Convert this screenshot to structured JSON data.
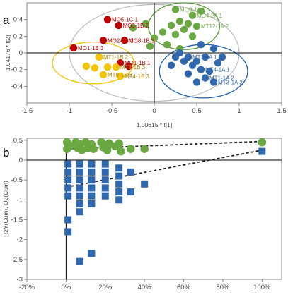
{
  "chart_data": [
    {
      "panel": "a",
      "type": "scatter",
      "xlabel": "1.00615 * t[1]",
      "ylabel": "1.04176 * t[2]",
      "xlim": [
        -1.5,
        1.5
      ],
      "ylim": [
        -0.6,
        0.6
      ],
      "xticks": [
        "-1.5",
        "-1",
        "-0.5",
        "0",
        "0.5",
        "1",
        "1.5"
      ],
      "yticks": [
        "0.4",
        "0.2",
        "0",
        "-0.2",
        "-0.4"
      ],
      "grid": false,
      "colors": {
        "MO": "#c00000",
        "MT": "#f5c400",
        "green": "#6aa842",
        "blue": "#3068b0"
      },
      "series": [
        {
          "color": "#c00000",
          "ellipse": null,
          "points": [
            {
              "x": -0.95,
              "y": 0.06,
              "label": "MO1-1B 3"
            },
            {
              "x": -0.55,
              "y": 0.4,
              "label": "MO5-1C 1"
            },
            {
              "x": -0.6,
              "y": 0.15,
              "label": "MO2-1B 3"
            },
            {
              "x": -0.42,
              "y": 0.33,
              "label": "MO3-1B 2"
            },
            {
              "x": -0.35,
              "y": 0.15,
              "label": "MO8-1B 3"
            },
            {
              "x": -0.4,
              "y": -0.12,
              "label": "MO1-1B 1"
            },
            {
              "x": -0.3,
              "y": -0.16,
              "label": ""
            }
          ]
        },
        {
          "color": "#f5c400",
          "ellipse": {
            "cx": -0.72,
            "cy": -0.12,
            "rx": 0.48,
            "ry": 0.25,
            "color": "#f5c400"
          },
          "points": [
            {
              "x": -0.65,
              "y": -0.05,
              "label": "MT1-1B 2"
            },
            {
              "x": -0.8,
              "y": -0.16,
              "label": ""
            },
            {
              "x": -0.7,
              "y": -0.18,
              "label": ""
            },
            {
              "x": -0.55,
              "y": -0.17,
              "label": ""
            },
            {
              "x": -0.45,
              "y": -0.17,
              "label": "MT8-1B 3"
            },
            {
              "x": -0.6,
              "y": -0.26,
              "label": "MT8-1B 3"
            },
            {
              "x": -0.4,
              "y": -0.28,
              "label": "MT4-1B 3"
            }
          ]
        },
        {
          "color": "#6aa842",
          "ellipse": {
            "cx": 0.35,
            "cy": 0.32,
            "rx": 0.42,
            "ry": 0.28,
            "color": "#5a9a3a"
          },
          "points": [
            {
              "x": 0.25,
              "y": 0.52,
              "label": "MO9-1A 1"
            },
            {
              "x": 0.45,
              "y": 0.45,
              "label": "MO4-2A 1"
            },
            {
              "x": 0.3,
              "y": 0.38,
              "label": ""
            },
            {
              "x": 0.2,
              "y": 0.33,
              "label": ""
            },
            {
              "x": 0.4,
              "y": 0.35,
              "label": ""
            },
            {
              "x": 0.5,
              "y": 0.32,
              "label": "MT12-1A 2"
            },
            {
              "x": 0.35,
              "y": 0.28,
              "label": ""
            },
            {
              "x": 0.25,
              "y": 0.22,
              "label": ""
            },
            {
              "x": 0.45,
              "y": 0.2,
              "label": ""
            },
            {
              "x": 0.1,
              "y": 0.25,
              "label": ""
            },
            {
              "x": 0.0,
              "y": 0.18,
              "label": ""
            },
            {
              "x": -0.25,
              "y": 0.3,
              "label": ""
            },
            {
              "x": -0.1,
              "y": 0.35,
              "label": ""
            },
            {
              "x": 0.15,
              "y": 0.1,
              "label": ""
            },
            {
              "x": -0.05,
              "y": 0.08,
              "label": ""
            },
            {
              "x": 0.55,
              "y": 0.5,
              "label": ""
            },
            {
              "x": 0.3,
              "y": 0.05,
              "label": ""
            }
          ]
        },
        {
          "color": "#3068b0",
          "ellipse": {
            "cx": 0.58,
            "cy": -0.22,
            "rx": 0.52,
            "ry": 0.32,
            "color": "#2060b0"
          },
          "points": [
            {
              "x": 0.3,
              "y": 0.0,
              "label": ""
            },
            {
              "x": 0.4,
              "y": -0.05,
              "label": "MT1-1A 1"
            },
            {
              "x": 0.5,
              "y": -0.1,
              "label": ""
            },
            {
              "x": 0.6,
              "y": -0.05,
              "label": ""
            },
            {
              "x": 0.7,
              "y": 0.05,
              "label": ""
            },
            {
              "x": 0.55,
              "y": -0.2,
              "label": "MT4-1A 1"
            },
            {
              "x": 0.45,
              "y": -0.15,
              "label": ""
            },
            {
              "x": 0.35,
              "y": -0.1,
              "label": ""
            },
            {
              "x": 0.6,
              "y": -0.3,
              "label": "MT1-1A 2"
            },
            {
              "x": 0.5,
              "y": -0.35,
              "label": ""
            },
            {
              "x": 0.65,
              "y": -0.22,
              "label": ""
            },
            {
              "x": 0.25,
              "y": -0.05,
              "label": ""
            },
            {
              "x": 0.75,
              "y": -0.12,
              "label": ""
            },
            {
              "x": 0.4,
              "y": -0.25,
              "label": ""
            },
            {
              "x": 0.7,
              "y": -0.35,
              "label": "MT3-1A 2"
            },
            {
              "x": 0.55,
              "y": 0.1,
              "label": ""
            },
            {
              "x": 0.2,
              "y": -0.15,
              "label": ""
            },
            {
              "x": 0.8,
              "y": -0.05,
              "label": ""
            }
          ]
        }
      ],
      "outer_ellipse": {
        "cx": 0.0,
        "cy": 0.0,
        "rx": 1.0,
        "ry": 0.58,
        "color": "#bbbbbb"
      }
    },
    {
      "panel": "b",
      "type": "scatter",
      "xlabel": "",
      "ylabel": "R2Y(Cum), Q2(Cum)",
      "xlim": [
        -20,
        100
      ],
      "ylim": [
        -3.0,
        0.5
      ],
      "xticks": [
        "-20%",
        "0%",
        "20%",
        "40%",
        "60%",
        "80%",
        "100%"
      ],
      "yticks": [
        "0.5",
        "0",
        "-0.5",
        "-1",
        "-1.5",
        "-2",
        "-2.5",
        "-3"
      ],
      "grid": false,
      "colors": {
        "R2": "#6aa842",
        "Q2": "#3068b0"
      },
      "series": [
        {
          "color": "#6aa842",
          "marker": "circle",
          "values": [
            [
              0.5,
              0.45
            ],
            [
              0.5,
              0.28
            ],
            [
              1,
              0.4
            ],
            [
              2,
              0.35
            ],
            [
              5,
              0.45
            ],
            [
              6,
              0.3
            ],
            [
              7,
              0.4
            ],
            [
              8,
              0.25
            ],
            [
              10,
              0.45
            ],
            [
              11,
              0.3
            ],
            [
              12,
              0.35
            ],
            [
              13,
              0.4
            ],
            [
              14,
              0.28
            ],
            [
              18,
              0.45
            ],
            [
              19,
              0.32
            ],
            [
              20,
              0.38
            ],
            [
              21,
              0.25
            ],
            [
              22,
              0.42
            ],
            [
              25,
              0.35
            ],
            [
              27,
              0.42
            ],
            [
              28,
              0.22
            ],
            [
              33,
              0.28
            ],
            [
              40,
              0.28
            ],
            [
              100,
              0.45
            ]
          ],
          "trend": [
            [
              0,
              0.28
            ],
            [
              100,
              0.47
            ]
          ]
        },
        {
          "color": "#3068b0",
          "marker": "square",
          "values": [
            [
              1,
              -0.1
            ],
            [
              1,
              -0.3
            ],
            [
              1,
              -0.5
            ],
            [
              1,
              -0.7
            ],
            [
              1,
              -0.9
            ],
            [
              1,
              -1.5
            ],
            [
              1,
              -1.8
            ],
            [
              7,
              -0.1
            ],
            [
              7,
              -0.3
            ],
            [
              7,
              -0.5
            ],
            [
              7,
              -0.7
            ],
            [
              7,
              -0.9
            ],
            [
              7,
              -1.1
            ],
            [
              7,
              -1.3
            ],
            [
              7,
              -2.55
            ],
            [
              13,
              -0.1
            ],
            [
              13,
              -0.3
            ],
            [
              13,
              -0.5
            ],
            [
              13,
              -0.7
            ],
            [
              13,
              -0.9
            ],
            [
              13,
              -1.1
            ],
            [
              13,
              -2.35
            ],
            [
              20,
              -0.1
            ],
            [
              20,
              -0.3
            ],
            [
              20,
              -0.5
            ],
            [
              20,
              -0.7
            ],
            [
              20,
              -0.9
            ],
            [
              27,
              -0.2
            ],
            [
              27,
              -0.4
            ],
            [
              27,
              -0.6
            ],
            [
              27,
              -0.8
            ],
            [
              27,
              -1.0
            ],
            [
              33,
              -0.3
            ],
            [
              33,
              -0.8
            ],
            [
              40,
              -0.6
            ],
            [
              100,
              0.22
            ]
          ],
          "trend": [
            [
              0,
              -0.68
            ],
            [
              100,
              0.25
            ]
          ]
        }
      ]
    }
  ],
  "panels": {
    "a": "a",
    "b": "b"
  }
}
